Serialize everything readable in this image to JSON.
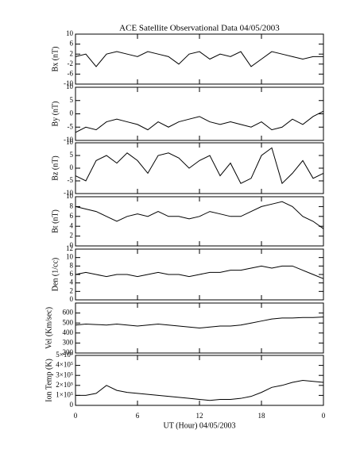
{
  "chart_data": [
    {
      "type": "line",
      "title": "ACE Satellite Observational Data   04/05/2003",
      "ylabel": "Bx (nT)",
      "color": "#000000",
      "x": [
        0,
        1,
        2,
        3,
        4,
        5,
        6,
        7,
        8,
        9,
        10,
        11,
        12,
        13,
        14,
        15,
        16,
        17,
        18,
        19,
        20,
        21,
        22,
        23,
        24
      ],
      "values": [
        1,
        2,
        -3,
        2,
        3,
        2,
        1,
        3,
        2,
        1,
        -2,
        2,
        3,
        0,
        2,
        1,
        3,
        -3,
        0,
        3,
        2,
        1,
        0,
        1,
        1
      ],
      "xlim": [
        0,
        24
      ],
      "ylim": [
        -10,
        10
      ],
      "yticks": [
        -10,
        -6,
        -2,
        2,
        6,
        10
      ]
    },
    {
      "type": "line",
      "ylabel": "By (nT)",
      "color": "#000000",
      "x": [
        0,
        1,
        2,
        3,
        4,
        5,
        6,
        7,
        8,
        9,
        10,
        11,
        12,
        13,
        14,
        15,
        16,
        17,
        18,
        19,
        20,
        21,
        22,
        23,
        24
      ],
      "values": [
        -7,
        -5,
        -6,
        -3,
        -2,
        -3,
        -4,
        -6,
        -3,
        -5,
        -3,
        -2,
        -1,
        -3,
        -4,
        -3,
        -4,
        -5,
        -3,
        -6,
        -5,
        -2,
        -4,
        -1,
        1
      ],
      "xlim": [
        0,
        24
      ],
      "ylim": [
        -10,
        10
      ],
      "yticks": [
        -10,
        -5,
        0,
        5,
        10
      ]
    },
    {
      "type": "line",
      "ylabel": "Bz (nT)",
      "color": "#000000",
      "x": [
        0,
        1,
        2,
        3,
        4,
        5,
        6,
        7,
        8,
        9,
        10,
        11,
        12,
        13,
        14,
        15,
        16,
        17,
        18,
        19,
        20,
        21,
        22,
        23,
        24
      ],
      "values": [
        -3,
        -5,
        3,
        5,
        2,
        6,
        3,
        -2,
        5,
        6,
        4,
        0,
        3,
        5,
        -3,
        2,
        -6,
        -4,
        5,
        8,
        -6,
        -2,
        3,
        -4,
        -2
      ],
      "xlim": [
        0,
        24
      ],
      "ylim": [
        -10,
        10
      ],
      "yticks": [
        -10,
        -5,
        0,
        5,
        10
      ]
    },
    {
      "type": "line",
      "ylabel": "Bt (nT)",
      "color": "#000000",
      "x": [
        0,
        1,
        2,
        3,
        4,
        5,
        6,
        7,
        8,
        9,
        10,
        11,
        12,
        13,
        14,
        15,
        16,
        17,
        18,
        19,
        20,
        21,
        22,
        23,
        24
      ],
      "values": [
        8,
        7.5,
        7,
        6,
        5,
        6,
        6.5,
        6,
        7,
        6,
        6,
        5.5,
        6,
        7,
        6.5,
        6,
        6,
        7,
        8,
        8.5,
        9,
        8,
        6,
        5,
        3.5
      ],
      "xlim": [
        0,
        24
      ],
      "ylim": [
        0,
        10
      ],
      "yticks": [
        0,
        2,
        4,
        6,
        8,
        10
      ]
    },
    {
      "type": "line",
      "ylabel": "Den (1/cc)",
      "color": "#000000",
      "x": [
        0,
        1,
        2,
        3,
        4,
        5,
        6,
        7,
        8,
        9,
        10,
        11,
        12,
        13,
        14,
        15,
        16,
        17,
        18,
        19,
        20,
        21,
        22,
        23,
        24
      ],
      "values": [
        6,
        6.5,
        6,
        5.5,
        6,
        6,
        5.5,
        6,
        6.5,
        6,
        6,
        5.5,
        6,
        6.5,
        6.5,
        7,
        7,
        7.5,
        8,
        7.5,
        8,
        8,
        7,
        6,
        5
      ],
      "xlim": [
        0,
        24
      ],
      "ylim": [
        0,
        12
      ],
      "yticks": [
        0,
        2,
        4,
        6,
        8,
        10,
        12
      ]
    },
    {
      "type": "line",
      "ylabel": "Vel (Km/sec)",
      "color": "#000000",
      "x": [
        0,
        1,
        2,
        3,
        4,
        5,
        6,
        7,
        8,
        9,
        10,
        11,
        12,
        13,
        14,
        15,
        16,
        17,
        18,
        19,
        20,
        21,
        22,
        23,
        24
      ],
      "values": [
        480,
        490,
        485,
        480,
        490,
        480,
        470,
        480,
        490,
        480,
        470,
        460,
        450,
        460,
        470,
        470,
        480,
        500,
        520,
        540,
        550,
        550,
        555,
        555,
        560
      ],
      "xlim": [
        0,
        24
      ],
      "ylim": [
        200,
        700
      ],
      "yticks": [
        200,
        300,
        400,
        500,
        600
      ]
    },
    {
      "type": "line",
      "ylabel": "Ion Temp (K)",
      "xlabel": "UT (Hour)  04/05/2003",
      "color": "#000000",
      "x": [
        0,
        1,
        2,
        3,
        4,
        5,
        6,
        7,
        8,
        9,
        10,
        11,
        12,
        13,
        14,
        15,
        16,
        17,
        18,
        19,
        20,
        21,
        22,
        23,
        24
      ],
      "values": [
        100000,
        100000,
        120000,
        200000,
        150000,
        130000,
        120000,
        110000,
        100000,
        90000,
        80000,
        70000,
        60000,
        50000,
        60000,
        60000,
        70000,
        90000,
        130000,
        180000,
        200000,
        230000,
        250000,
        240000,
        230000
      ],
      "xlim": [
        0,
        24
      ],
      "ylim": [
        0,
        500000
      ],
      "yticks": [
        0,
        {
          "value": 100000,
          "label": "1×10⁵"
        },
        {
          "value": 200000,
          "label": "2×10⁵"
        },
        {
          "value": 300000,
          "label": "3×10⁵"
        },
        {
          "value": 400000,
          "label": "4×10⁵"
        },
        {
          "value": 500000,
          "label": "5×10⁵"
        }
      ],
      "xticks": [
        0,
        6,
        12,
        18,
        {
          "value": 24,
          "label": "0"
        }
      ]
    }
  ]
}
